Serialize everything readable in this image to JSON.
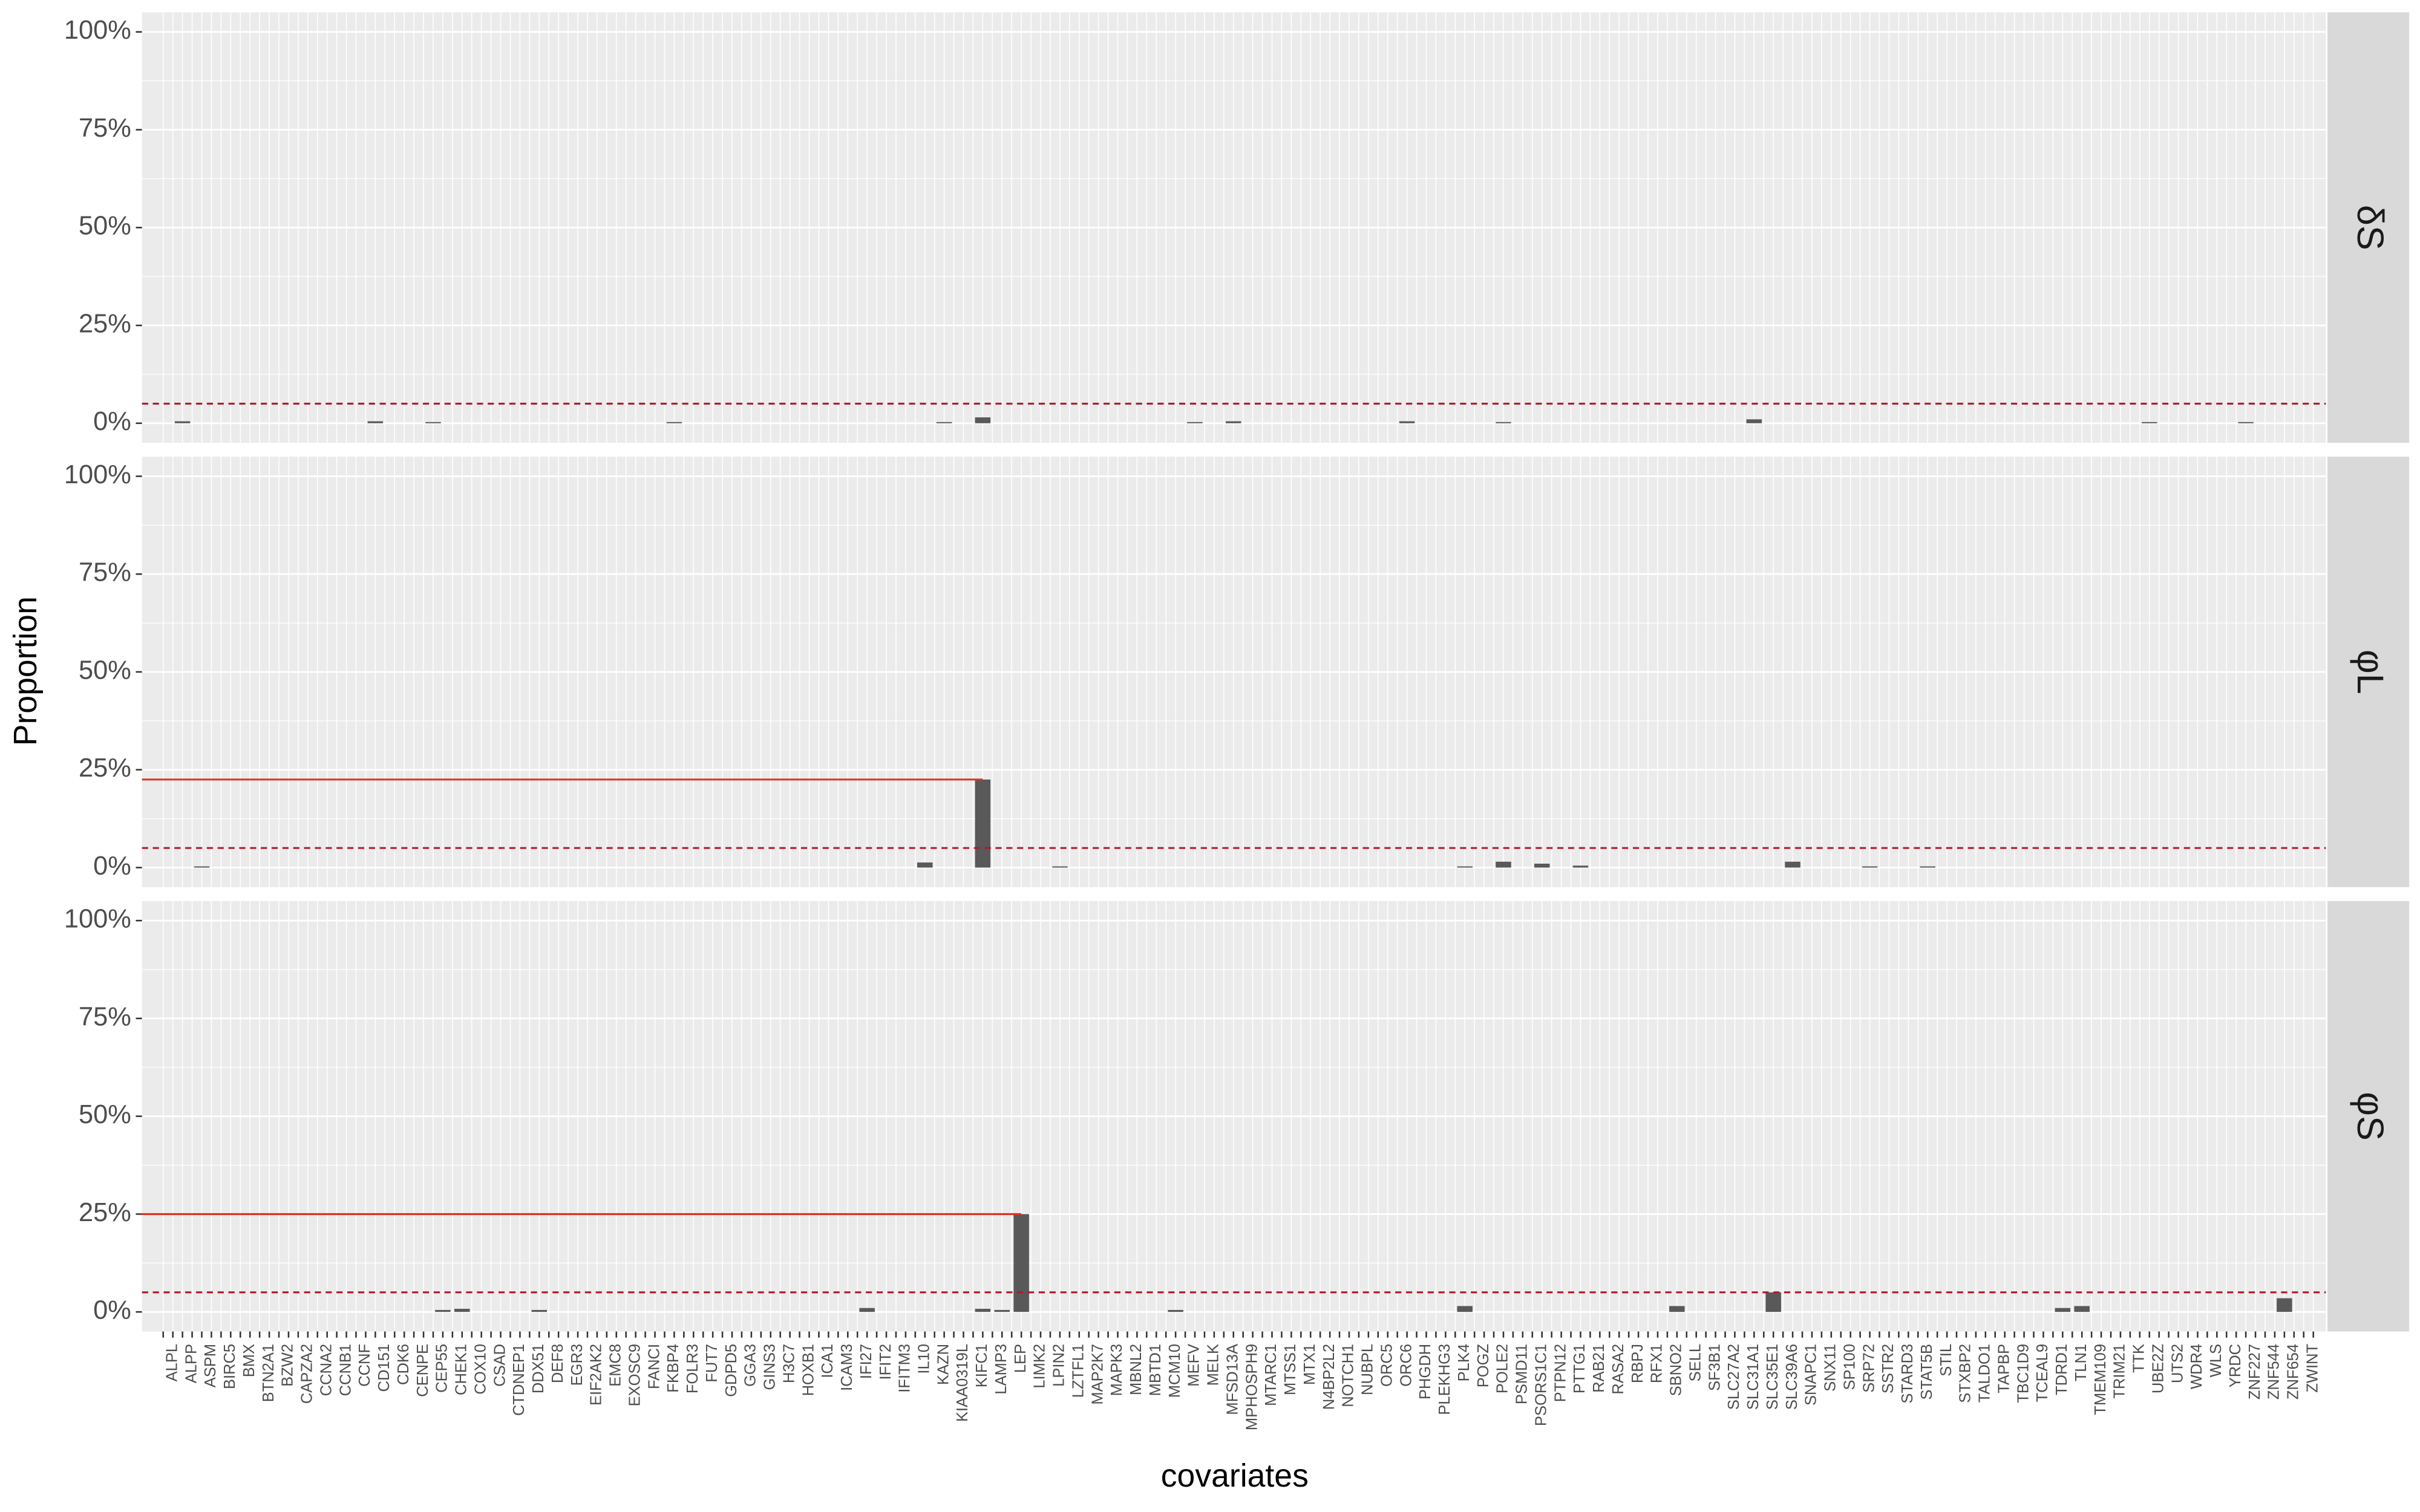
{
  "chart_data": {
    "type": "bar",
    "ylabel": "Proportion",
    "xlabel": "covariates",
    "categories": [
      null,
      "ALPL",
      null,
      "ALPP",
      null,
      "ASPM",
      null,
      "BIRC5",
      null,
      "BMX",
      null,
      "BTN2A1",
      null,
      "BZW2",
      null,
      "CAPZA2",
      null,
      "CCNA2",
      null,
      "CCNB1",
      null,
      "CCNF",
      null,
      "CD151",
      null,
      "CDK6",
      null,
      "CENPE",
      null,
      "CEP55",
      null,
      "CHEK1",
      null,
      "COX10",
      null,
      "CSAD",
      null,
      "CTDNEP1",
      null,
      "DDX51",
      null,
      "DEF8",
      null,
      "EGR3",
      null,
      "EIF2AK2",
      null,
      "EMC8",
      null,
      "EXOSC9",
      null,
      "FANCI",
      null,
      "FKBP4",
      null,
      "FOLR3",
      null,
      "FUT7",
      null,
      "GDPD5",
      null,
      "GGA3",
      null,
      "GINS3",
      null,
      "H3C7",
      null,
      "HOXB1",
      null,
      "ICA1",
      null,
      "ICAM3",
      null,
      "IFI27",
      null,
      "IFIT2",
      null,
      "IFITM3",
      null,
      "IL10",
      null,
      "KAZN",
      null,
      "KIAA0319L",
      null,
      "KIFC1",
      null,
      "LAMP3",
      null,
      "LEP",
      null,
      "LIMK2",
      null,
      "LPIN2",
      null,
      "LZTFL1",
      null,
      "MAP2K7",
      null,
      "MAPK3",
      null,
      "MBNL2",
      null,
      "MBTD1",
      null,
      "MCM10",
      null,
      "MEFV",
      null,
      "MELK",
      null,
      "MFSD13A",
      null,
      "MPHOSPH9",
      null,
      "MTARC1",
      null,
      "MTSS1",
      null,
      "MTX1",
      null,
      "N4BP2L2",
      null,
      "NOTCH1",
      null,
      "NUBPL",
      null,
      "ORC5",
      null,
      "ORC6",
      null,
      "PHGDH",
      null,
      "PLEKHG3",
      null,
      "PLK4",
      null,
      "POGZ",
      null,
      "POLE2",
      null,
      "PSMD11",
      null,
      "PSORS1C1",
      null,
      "PTPN12",
      null,
      "PTTG1",
      null,
      "RAB21",
      null,
      "RASA2",
      null,
      "RBPJ",
      null,
      "RFX1",
      null,
      "SBNO2",
      null,
      "SELL",
      null,
      "SF3B1",
      null,
      "SLC27A2",
      null,
      "SLC31A1",
      null,
      "SLC35E1",
      null,
      "SLC39A6",
      null,
      "SNAPC1",
      null,
      "SNX11",
      null,
      "SP100",
      null,
      "SRP72",
      null,
      "SSTR2",
      null,
      "STARD3",
      null,
      "STAT5B",
      null,
      "STIL",
      null,
      "STXBP2",
      null,
      "TALDO1",
      null,
      "TAPBP",
      null,
      "TBC1D9",
      null,
      "TCEAL9",
      null,
      "TDRD1",
      null,
      "TLN1",
      null,
      "TMEM109",
      null,
      "TRIM21",
      null,
      "TTK",
      null,
      "UBE2Z",
      null,
      "UTS2",
      null,
      "WDR4",
      null,
      "WLS",
      null,
      "YRDC",
      null,
      "ZNF227",
      null,
      "ZNF544",
      null,
      "ZNF654",
      null,
      "ZWINT"
    ],
    "series": [
      {
        "name": "δS",
        "color": "#595959",
        "values": [
          0,
          0,
          0.5,
          0,
          0,
          0,
          0,
          0,
          0,
          0,
          0,
          0,
          0,
          0,
          0,
          0,
          0,
          0,
          0,
          0,
          0,
          0,
          0.5,
          0,
          0,
          0,
          0,
          0,
          0.3,
          0,
          0,
          0,
          0,
          0,
          0,
          0,
          0,
          0,
          0,
          0,
          0,
          0,
          0,
          0,
          0,
          0,
          0,
          0,
          0,
          0,
          0,
          0,
          0,
          0.3,
          0,
          0,
          0,
          0,
          0,
          0,
          0,
          0,
          0,
          0,
          0,
          0,
          0,
          0,
          0,
          0,
          0,
          0,
          0,
          0,
          0,
          0,
          0,
          0,
          0,
          0,
          0,
          0.3,
          0,
          0,
          0,
          1.5,
          0,
          0,
          0,
          0,
          0,
          0,
          0,
          0,
          0,
          0,
          0,
          0,
          0,
          0,
          0,
          0,
          0,
          0,
          0,
          0,
          0,
          0.3,
          0,
          0,
          0,
          0.5,
          0,
          0,
          0,
          0,
          0,
          0,
          0,
          0,
          0,
          0,
          0,
          0,
          0,
          0,
          0,
          0,
          0,
          0.5,
          0,
          0,
          0,
          0,
          0,
          0,
          0,
          0,
          0,
          0.3,
          0,
          0,
          0,
          0,
          0,
          0,
          0,
          0,
          0,
          0,
          0,
          0,
          0,
          0,
          0,
          0,
          0,
          0,
          0,
          0,
          0,
          0,
          0,
          0,
          0,
          1,
          0,
          0,
          0,
          0,
          0,
          0,
          0,
          0,
          0,
          0,
          0,
          0,
          0,
          0,
          0,
          0,
          0,
          0,
          0,
          0,
          0,
          0,
          0,
          0,
          0,
          0,
          0,
          0,
          0,
          0,
          0,
          0,
          0,
          0,
          0,
          0,
          0,
          0,
          0,
          0,
          0.3,
          0,
          0,
          0,
          0,
          0,
          0,
          0,
          0,
          0,
          0.3,
          0,
          0,
          0,
          0,
          0,
          0,
          0
        ]
      },
      {
        "name": "φL",
        "color": "#595959",
        "values": [
          0,
          0,
          0,
          0,
          0.3,
          0,
          0,
          0,
          0,
          0,
          0,
          0,
          0,
          0,
          0,
          0,
          0,
          0,
          0,
          0,
          0,
          0,
          0,
          0,
          0,
          0,
          0,
          0,
          0,
          0,
          0,
          0,
          0,
          0,
          0,
          0,
          0,
          0,
          0,
          0,
          0,
          0,
          0,
          0,
          0,
          0,
          0,
          0,
          0,
          0,
          0,
          0,
          0,
          0,
          0,
          0,
          0,
          0,
          0,
          0,
          0,
          0,
          0,
          0,
          0,
          0,
          0,
          0,
          0,
          0,
          0,
          0,
          0,
          0,
          0,
          0,
          0,
          0,
          0,
          1.3,
          0,
          0,
          0,
          0,
          0,
          22.5,
          0,
          0,
          0,
          0,
          0,
          0,
          0,
          0.3,
          0,
          0,
          0,
          0,
          0,
          0,
          0,
          0,
          0,
          0,
          0,
          0,
          0,
          0,
          0,
          0,
          0,
          0,
          0,
          0,
          0,
          0,
          0,
          0,
          0,
          0,
          0,
          0,
          0,
          0,
          0,
          0,
          0,
          0,
          0,
          0,
          0,
          0,
          0,
          0,
          0,
          0.3,
          0,
          0,
          0,
          1.5,
          0,
          0,
          0,
          1,
          0,
          0,
          0,
          0.5,
          0,
          0,
          0,
          0,
          0,
          0,
          0,
          0,
          0,
          0,
          0,
          0,
          0,
          0,
          0,
          0,
          0,
          0,
          0,
          0,
          0,
          1.5,
          0,
          0,
          0,
          0,
          0,
          0,
          0,
          0.3,
          0,
          0,
          0,
          0,
          0,
          0.3,
          0,
          0,
          0,
          0,
          0,
          0,
          0,
          0,
          0,
          0,
          0,
          0,
          0,
          0,
          0,
          0,
          0,
          0,
          0,
          0,
          0,
          0,
          0,
          0,
          0,
          0,
          0,
          0,
          0,
          0,
          0,
          0,
          0,
          0,
          0,
          0,
          0,
          0,
          0,
          0
        ]
      },
      {
        "name": "φS",
        "color": "#595959",
        "values": [
          0,
          0,
          0,
          0,
          0,
          0,
          0,
          0,
          0,
          0,
          0,
          0,
          0,
          0,
          0,
          0,
          0,
          0,
          0,
          0,
          0,
          0,
          0,
          0,
          0,
          0,
          0,
          0,
          0,
          0.5,
          0,
          0.8,
          0,
          0,
          0,
          0,
          0,
          0,
          0,
          0.5,
          0,
          0,
          0,
          0,
          0,
          0,
          0,
          0,
          0,
          0,
          0,
          0,
          0,
          0,
          0,
          0,
          0,
          0,
          0,
          0,
          0,
          0,
          0,
          0,
          0,
          0,
          0,
          0,
          0,
          0,
          0,
          0,
          0,
          1,
          0,
          0,
          0,
          0,
          0,
          0,
          0,
          0,
          0,
          0,
          0,
          0.8,
          0,
          0.5,
          0,
          25,
          0,
          0,
          0,
          0,
          0,
          0,
          0,
          0,
          0,
          0,
          0,
          0,
          0,
          0,
          0,
          0.5,
          0,
          0,
          0,
          0,
          0,
          0,
          0,
          0,
          0,
          0,
          0,
          0,
          0,
          0,
          0,
          0,
          0,
          0,
          0,
          0,
          0,
          0,
          0,
          0,
          0,
          0,
          0,
          0,
          0,
          1.5,
          0,
          0,
          0,
          0,
          0,
          0,
          0,
          0,
          0,
          0,
          0,
          0,
          0,
          0,
          0,
          0,
          0,
          0,
          0,
          0,
          0,
          1.5,
          0,
          0,
          0,
          0,
          0,
          0,
          0,
          0,
          0,
          5,
          0,
          0,
          0,
          0,
          0,
          0,
          0,
          0,
          0,
          0,
          0,
          0,
          0,
          0,
          0,
          0,
          0,
          0,
          0,
          0,
          0,
          0,
          0,
          0,
          0,
          0,
          0,
          0,
          0,
          1,
          0,
          1.5,
          0,
          0,
          0,
          0,
          0,
          0,
          0,
          0,
          0,
          0,
          0,
          0,
          0,
          0,
          0,
          0,
          0,
          0,
          0,
          0,
          3.5,
          0,
          0,
          0
        ]
      }
    ],
    "ylim": [
      -5,
      105
    ],
    "yticks": [
      {
        "value": 0,
        "label": "0%"
      },
      {
        "value": 25,
        "label": "25%"
      },
      {
        "value": 50,
        "label": "50%"
      },
      {
        "value": 75,
        "label": "75%"
      },
      {
        "value": 100,
        "label": "100%"
      }
    ],
    "grid": true,
    "threshold": 5,
    "threshold_color": "#b2182b",
    "max_line_color": "#e0301e"
  }
}
